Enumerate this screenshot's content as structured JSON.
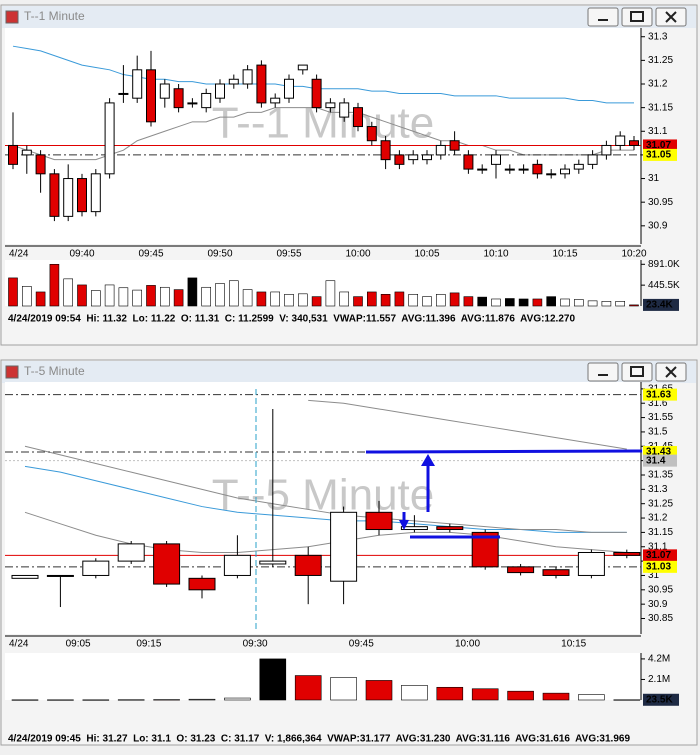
{
  "windows": [
    {
      "title": "T--1 Minute"
    },
    {
      "title": "T--5 Minute"
    }
  ],
  "chart_data": [
    {
      "type": "candlestick",
      "watermark": "T--1 Minute",
      "date_label": "4/24",
      "categories": [
        null,
        null,
        null,
        null,
        null,
        "09:40",
        null,
        null,
        null,
        null,
        "09:45",
        null,
        null,
        null,
        null,
        "09:50",
        null,
        null,
        null,
        null,
        "09:55",
        null,
        null,
        null,
        null,
        "10:00",
        null,
        null,
        null,
        null,
        "10:05",
        null,
        null,
        null,
        null,
        "10:10",
        null,
        null,
        null,
        null,
        "10:15",
        null,
        null,
        null,
        null,
        "10:20"
      ],
      "candles": [
        [
          31.07,
          31.14,
          31.02,
          31.03
        ],
        [
          31.05,
          31.07,
          31.01,
          31.06
        ],
        [
          31.05,
          31.06,
          30.97,
          31.01
        ],
        [
          31.01,
          31.02,
          30.91,
          30.92
        ],
        [
          30.92,
          31.03,
          30.91,
          31.0
        ],
        [
          31.0,
          31.01,
          30.92,
          30.93
        ],
        [
          30.93,
          31.02,
          30.92,
          31.01
        ],
        [
          31.01,
          31.17,
          31.0,
          31.16
        ],
        [
          31.18,
          31.24,
          31.16,
          31.18
        ],
        [
          31.17,
          31.26,
          31.16,
          31.23
        ],
        [
          31.23,
          31.27,
          31.11,
          31.12
        ],
        [
          31.17,
          31.21,
          31.15,
          31.2
        ],
        [
          31.19,
          31.2,
          31.14,
          31.15
        ],
        [
          31.16,
          31.17,
          31.15,
          31.16
        ],
        [
          31.15,
          31.19,
          31.14,
          31.18
        ],
        [
          31.17,
          31.21,
          31.16,
          31.2
        ],
        [
          31.2,
          31.22,
          31.19,
          31.21
        ],
        [
          31.2,
          31.24,
          31.19,
          31.23
        ],
        [
          31.24,
          31.25,
          31.15,
          31.16
        ],
        [
          31.16,
          31.18,
          31.15,
          31.17
        ],
        [
          31.17,
          31.22,
          31.16,
          31.21
        ],
        [
          31.23,
          31.24,
          31.22,
          31.24
        ],
        [
          31.21,
          31.22,
          31.14,
          31.15
        ],
        [
          31.15,
          31.17,
          31.14,
          31.16
        ],
        [
          31.13,
          31.17,
          31.12,
          31.16
        ],
        [
          31.15,
          31.16,
          31.1,
          31.11
        ],
        [
          31.11,
          31.12,
          31.07,
          31.08
        ],
        [
          31.08,
          31.09,
          31.02,
          31.04
        ],
        [
          31.05,
          31.06,
          31.02,
          31.03
        ],
        [
          31.04,
          31.06,
          31.03,
          31.05
        ],
        [
          31.04,
          31.06,
          31.03,
          31.05
        ],
        [
          31.05,
          31.08,
          31.04,
          31.07
        ],
        [
          31.08,
          31.1,
          31.05,
          31.06
        ],
        [
          31.05,
          31.06,
          31.01,
          31.02
        ],
        [
          31.02,
          31.03,
          31.01,
          31.02
        ],
        [
          31.03,
          31.06,
          31.0,
          31.05
        ],
        [
          31.02,
          31.03,
          31.01,
          31.02
        ],
        [
          31.02,
          31.03,
          31.01,
          31.02
        ],
        [
          31.03,
          31.04,
          31.0,
          31.01
        ],
        [
          31.01,
          31.02,
          31.0,
          31.01
        ],
        [
          31.01,
          31.03,
          31.0,
          31.02
        ],
        [
          31.02,
          31.04,
          31.01,
          31.03
        ],
        [
          31.03,
          31.06,
          31.02,
          31.05
        ],
        [
          31.05,
          31.08,
          31.04,
          31.07
        ],
        [
          31.07,
          31.1,
          31.06,
          31.09
        ],
        [
          31.08,
          31.09,
          31.06,
          31.07
        ]
      ],
      "up_color": "#ffffff",
      "down_color": "#e00000",
      "overlays": [
        {
          "color": "#3a9ad9",
          "values": [
            31.28,
            31.275,
            31.27,
            31.26,
            31.25,
            31.24,
            31.235,
            31.23,
            31.22,
            31.215,
            31.21,
            31.21,
            31.205,
            31.205,
            31.2,
            31.2,
            31.2,
            31.2,
            31.2,
            31.2,
            31.195,
            31.195,
            31.19,
            31.19,
            31.19,
            31.19,
            31.185,
            31.185,
            31.18,
            31.18,
            31.18,
            31.18,
            31.175,
            31.175,
            31.175,
            31.175,
            31.17,
            31.17,
            31.17,
            31.17,
            31.17,
            31.165,
            31.165,
            31.16,
            31.16,
            31.16
          ]
        },
        {
          "color": "#8c8c8c",
          "values": [
            31.07,
            31.06,
            31.05,
            31.04,
            31.04,
            31.04,
            31.04,
            31.05,
            31.06,
            31.08,
            31.09,
            31.1,
            31.11,
            31.12,
            31.12,
            31.13,
            31.13,
            31.14,
            31.14,
            31.15,
            31.15,
            31.15,
            31.15,
            31.14,
            31.14,
            31.14,
            31.13,
            31.12,
            31.11,
            31.1,
            31.09,
            31.08,
            31.08,
            31.07,
            31.07,
            31.06,
            31.06,
            31.05,
            31.05,
            31.05,
            31.05,
            31.05,
            31.05,
            31.06,
            31.06,
            31.06
          ]
        }
      ],
      "ylim": [
        30.87,
        31.31
      ],
      "yticks": [
        31.3,
        31.25,
        31.2,
        31.15,
        31.1,
        31.05,
        31,
        30.95,
        30.9
      ],
      "price_markers": [
        {
          "value": 31.07,
          "color": "#e00000",
          "line": "solid"
        },
        {
          "value": 31.05,
          "color": "#ffff00",
          "line": "dashdot"
        }
      ],
      "volume": {
        "values": [
          600000,
          420000,
          300000,
          891000,
          580000,
          450000,
          330000,
          450000,
          390000,
          340000,
          440000,
          400000,
          350000,
          600000,
          400000,
          480000,
          540000,
          350000,
          300000,
          300000,
          250000,
          260000,
          200000,
          540000,
          300000,
          200000,
          300000,
          250000,
          300000,
          250000,
          200000,
          250000,
          280000,
          200000,
          190000,
          150000,
          160000,
          150000,
          150000,
          200000,
          150000,
          140000,
          110000,
          100000,
          100000,
          23400
        ],
        "colors": [
          "#e00000",
          "#ffffff",
          "#e00000",
          "#e00000",
          "#ffffff",
          "#e00000",
          "#ffffff",
          "#ffffff",
          "#ffffff",
          "#ffffff",
          "#e00000",
          "#ffffff",
          "#e00000",
          "#000000",
          "#ffffff",
          "#ffffff",
          "#ffffff",
          "#ffffff",
          "#e00000",
          "#ffffff",
          "#ffffff",
          "#ffffff",
          "#e00000",
          "#ffffff",
          "#ffffff",
          "#e00000",
          "#e00000",
          "#e00000",
          "#e00000",
          "#ffffff",
          "#ffffff",
          "#ffffff",
          "#e00000",
          "#e00000",
          "#000000",
          "#ffffff",
          "#000000",
          "#000000",
          "#e00000",
          "#000000",
          "#ffffff",
          "#ffffff",
          "#ffffff",
          "#ffffff",
          "#ffffff",
          "#e00000"
        ],
        "ylim": [
          0,
          940000
        ],
        "yticks": [
          {
            "value": 891000,
            "label": "891.0K"
          },
          {
            "value": 445500,
            "label": "445.5K"
          }
        ],
        "current": {
          "value": 23400,
          "label": "23.4K"
        }
      },
      "info": "4/24/2019 09:54  Hi: 11.32  Lo: 11.22  O: 11.31  C: 11.2599  V: 340,531  VWAP:11.557  AVG:11.396  AVG:11.876  AVG:12.270"
    },
    {
      "type": "candlestick",
      "watermark": "T--5 Minute",
      "date_label": "4/24",
      "categories": [
        null,
        null,
        "09:05",
        null,
        "09:15",
        null,
        null,
        "09:30",
        null,
        null,
        "09:45",
        null,
        null,
        "10:00",
        null,
        null,
        "10:15",
        null
      ],
      "candles": [
        [
          30.99,
          31.0,
          30.99,
          31.0
        ],
        [
          31.0,
          31.0,
          30.89,
          31.0
        ],
        [
          31.0,
          31.06,
          30.99,
          31.05
        ],
        [
          31.05,
          31.12,
          31.04,
          31.11
        ],
        [
          31.11,
          31.12,
          30.96,
          30.97
        ],
        [
          30.99,
          31.0,
          30.92,
          30.95
        ],
        [
          31.0,
          31.14,
          30.99,
          31.07
        ],
        [
          31.04,
          31.58,
          31.03,
          31.05
        ],
        [
          31.07,
          31.1,
          30.9,
          31.0
        ],
        [
          30.98,
          31.24,
          30.9,
          31.22
        ],
        [
          31.22,
          31.26,
          31.14,
          31.16
        ],
        [
          31.16,
          31.21,
          31.15,
          31.17
        ],
        [
          31.17,
          31.18,
          31.15,
          31.16
        ],
        [
          31.15,
          31.16,
          31.02,
          31.03
        ],
        [
          31.03,
          31.04,
          31.0,
          31.01
        ],
        [
          31.02,
          31.03,
          30.99,
          31.0
        ],
        [
          31.0,
          31.09,
          30.99,
          31.08
        ],
        [
          31.08,
          31.09,
          31.06,
          31.07
        ]
      ],
      "up_color": "#ffffff",
      "down_color": "#e00000",
      "overlays": [
        {
          "color": "#3a9ad9",
          "values": [
            31.38,
            31.36,
            31.33,
            31.3,
            31.27,
            31.24,
            31.22,
            31.21,
            31.2,
            31.19,
            31.19,
            31.18,
            31.17,
            31.16,
            31.16,
            31.15,
            31.15,
            31.15
          ]
        },
        {
          "color": "#8c8c8c",
          "values": [
            31.45,
            31.42,
            31.39,
            31.36,
            31.33,
            31.3,
            31.27,
            31.25,
            31.23,
            31.21,
            31.2,
            31.19,
            31.18,
            31.17,
            31.16,
            31.16,
            31.15,
            31.15
          ]
        },
        {
          "color": "#8c8c8c",
          "values": [
            31.22,
            31.18,
            31.14,
            31.11,
            31.09,
            31.08,
            31.08,
            31.09,
            31.1,
            31.12,
            31.14,
            31.15,
            31.15,
            31.14,
            31.12,
            31.1,
            31.09,
            31.08
          ]
        },
        {
          "color": "#8c8c8c",
          "values": [
            null,
            null,
            null,
            null,
            null,
            null,
            null,
            null,
            31.61,
            31.6,
            31.58,
            31.56,
            31.54,
            31.52,
            31.5,
            31.48,
            31.46,
            31.44
          ]
        }
      ],
      "ylim": [
        30.81,
        31.66
      ],
      "yticks": [
        31.65,
        31.6,
        31.55,
        31.5,
        31.45,
        31.4,
        31.35,
        31.3,
        31.25,
        31.2,
        31.15,
        31.1,
        31.05,
        31,
        30.95,
        30.9,
        30.85
      ],
      "price_markers": [
        {
          "value": 31.63,
          "color": "#ffff00",
          "line": "dashdot"
        },
        {
          "value": 31.43,
          "color": "#ffff00",
          "line": "dashdot"
        },
        {
          "value": 31.4,
          "color": "#c0c0c0",
          "line": "dotted"
        },
        {
          "value": 31.07,
          "color": "#e00000",
          "line": "solid"
        },
        {
          "value": 31.03,
          "color": "#ffff00",
          "line": "dashdot"
        }
      ],
      "volume": {
        "values": [
          20000,
          20000,
          20000,
          30000,
          40000,
          80000,
          200000,
          4200000,
          2500000,
          2300000,
          2000000,
          1500000,
          1300000,
          1150000,
          900000,
          700000,
          550000,
          23500
        ],
        "colors": [
          "#ffffff",
          "#ffffff",
          "#ffffff",
          "#ffffff",
          "#e00000",
          "#ffffff",
          "#ffffff",
          "#000000",
          "#e00000",
          "#ffffff",
          "#e00000",
          "#ffffff",
          "#e00000",
          "#e00000",
          "#e00000",
          "#e00000",
          "#ffffff",
          "#e00000"
        ],
        "ylim": [
          0,
          4600000
        ],
        "yticks": [
          {
            "value": 4200000,
            "label": "4.2M"
          },
          {
            "value": 2100000,
            "label": "2.1M"
          }
        ],
        "current": {
          "value": 23500,
          "label": "23.5K"
        }
      },
      "info": "4/24/2019 09:45  Hi: 31.27  Lo: 31.1  O: 31.23  C: 31.17  V: 1,866,364  VWAP:31.177  AVG:31.230  AVG:31.116  AVG:31.616  AVG:31.969"
    }
  ]
}
